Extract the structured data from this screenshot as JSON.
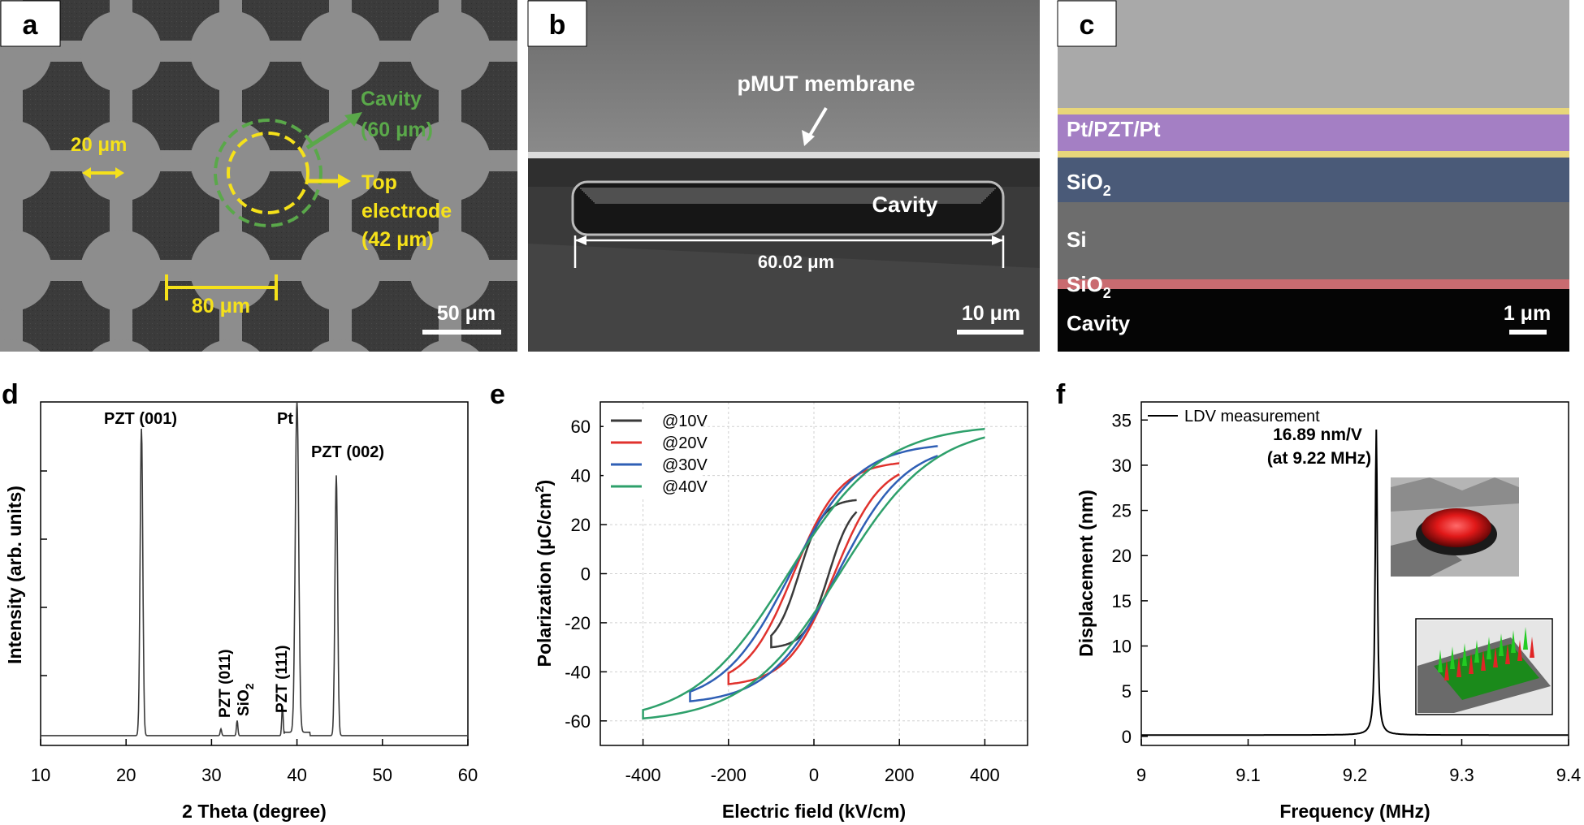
{
  "panels": {
    "a": {
      "letter": "a",
      "cavity_label_1": "Cavity",
      "cavity_label_2": "(60 μm)",
      "top_label_1": "Top",
      "top_label_2": "electrode",
      "top_label_3": "(42 μm)",
      "width_label": "20 μm",
      "pitch_label": "80 μm",
      "scale": "50 μm"
    },
    "b": {
      "letter": "b",
      "membrane": "pMUT membrane",
      "cavity": "Cavity",
      "width": "60.02 μm",
      "scale": "10 μm"
    },
    "c": {
      "letter": "c",
      "layers": [
        "Pt/PZT/Pt",
        "SiO",
        "Si",
        "SiO",
        "Cavity"
      ],
      "sub": "2",
      "scale": "1 μm"
    },
    "d": {
      "letter": "d"
    },
    "e": {
      "letter": "e"
    },
    "f": {
      "letter": "f",
      "note_1": "16.89 nm/V",
      "note_2": "(at 9.22 MHz)"
    }
  },
  "colors": {
    "annot_yellow": "#f5e11a",
    "annot_green": "#5aa84a",
    "sem_gray": "#8d8d8d",
    "pzt_purple": "#a47fc4",
    "sio2_blue": "#4a5a78",
    "line_black": "#3a3a3a",
    "red": "#e0322d",
    "blue": "#2f5fb5",
    "green": "#2ea06b"
  },
  "chart_data": [
    {
      "type": "line",
      "panel": "d",
      "xlabel": "2 Theta (degree)",
      "ylabel": "Intensity (arb. units)",
      "xlim": [
        10,
        60
      ],
      "xticks": [
        "10",
        "20",
        "30",
        "40",
        "50",
        "60"
      ],
      "peaks": [
        {
          "x": 21.8,
          "h": 0.92,
          "label": "PZT (001)"
        },
        {
          "x": 31.1,
          "h": 0.02,
          "label": "PZT (011)"
        },
        {
          "x": 33.0,
          "h": 0.045,
          "label": "SiO2"
        },
        {
          "x": 38.3,
          "h": 0.09,
          "label": "PZT (111)"
        },
        {
          "x": 40.0,
          "h": 1.0,
          "label": "Pt"
        },
        {
          "x": 44.6,
          "h": 0.78,
          "label": "PZT (002)"
        }
      ],
      "peak_labels": [
        "PZT (001)",
        "Pt",
        "PZT (002)",
        "PZT (011)",
        "SiO",
        "PZT (111)"
      ]
    },
    {
      "type": "line",
      "panel": "e",
      "xlabel": "Electric field (kV/cm)",
      "ylabel": "Polarization (μC/cm",
      "xlim": [
        -500,
        500
      ],
      "ylim": [
        -70,
        70
      ],
      "xticks": [
        "-400",
        "-200",
        "0",
        "200",
        "400"
      ],
      "yticks": [
        "-60",
        "-40",
        "-20",
        "0",
        "20",
        "40",
        "60"
      ],
      "series": [
        {
          "name": "@10V",
          "emax": 100,
          "pmax": 30,
          "pr": 8,
          "ec": 35
        },
        {
          "name": "@20V",
          "emax": 200,
          "pmax": 45,
          "pr": 14,
          "ec": 48
        },
        {
          "name": "@30V",
          "emax": 290,
          "pmax": 52,
          "pr": 18,
          "ec": 55
        },
        {
          "name": "@40V",
          "emax": 400,
          "pmax": 59,
          "pr": 22,
          "ec": 60
        }
      ]
    },
    {
      "type": "line",
      "panel": "f",
      "xlabel": "Frequency (MHz)",
      "ylabel": "Displacement (nm)",
      "xlim": [
        9.0,
        9.4
      ],
      "ylim": [
        -1,
        37
      ],
      "xticks": [
        "9",
        "9.1",
        "9.2",
        "9.3",
        "9.4"
      ],
      "yticks": [
        "0",
        "5",
        "10",
        "15",
        "20",
        "25",
        "30",
        "35"
      ],
      "series": [
        {
          "name": "LDV measurement",
          "peak_x": 9.22,
          "peak_y": 33.8
        }
      ]
    }
  ]
}
